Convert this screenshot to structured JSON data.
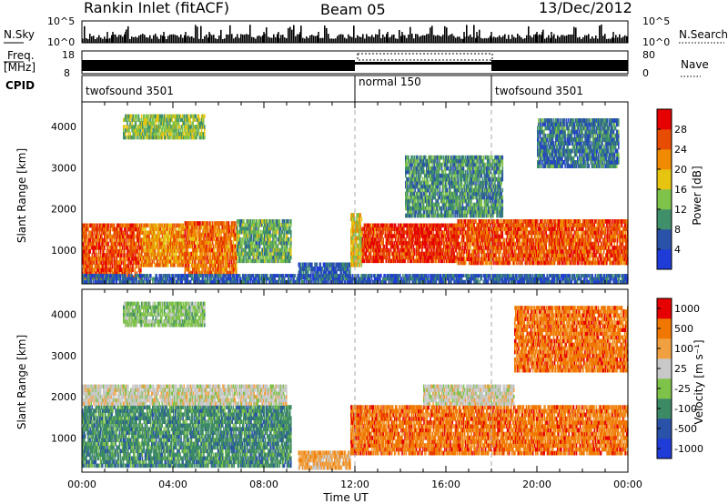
{
  "header": {
    "title": "Rankin Inlet (fitACF)",
    "beam": "Beam 05",
    "date": "13/Dec/2012"
  },
  "top_panels": {
    "nsky_label": "N.Sky",
    "nsky_ticks": [
      "10^5",
      "10^0"
    ],
    "nsearch_label": "N.Search",
    "nsearch_ticks": [
      "10^5",
      "10^0"
    ],
    "freq_label_1": "Freq.",
    "freq_label_2": "[MHz]",
    "freq_ticks": [
      "18",
      "8"
    ],
    "nave_label": "Nave",
    "nave_ticks": [
      "80",
      "0"
    ],
    "cpid_label": "CPID",
    "cpid_segments": [
      {
        "name": "twofsound 3501",
        "start_h": 0,
        "end_h": 12
      },
      {
        "name": "normal 150",
        "start_h": 12,
        "end_h": 18
      },
      {
        "name": "twofsound 3501",
        "start_h": 18,
        "end_h": 24
      }
    ]
  },
  "x_axis": {
    "label": "Time UT",
    "ticks": [
      "00:00",
      "04:00",
      "08:00",
      "12:00",
      "16:00",
      "20:00",
      "00:00"
    ]
  },
  "chart_data": [
    {
      "type": "heatmap",
      "parameter": "power",
      "ylabel": "Slant Range [km]",
      "xlim_hours": [
        0,
        24
      ],
      "ylim_km": [
        180,
        4600
      ],
      "y_ticks": [
        1000,
        2000,
        3000,
        4000
      ],
      "colorbar_label": "Power [dB]",
      "colorbar_ticks": [
        "4",
        "8",
        "12",
        "16",
        "20",
        "24",
        "28"
      ],
      "colorbar_range": [
        0,
        32
      ],
      "colors": [
        "#1f3bd8",
        "#2a52a8",
        "#3f8f6a",
        "#7fc24a",
        "#e6c410",
        "#f08a00",
        "#e74c00",
        "#e60000"
      ],
      "regions": [
        {
          "t0": 0,
          "t1": 2.6,
          "r0": 300,
          "r1": 1650,
          "level": 26
        },
        {
          "t0": 2.6,
          "t1": 4.5,
          "r0": 600,
          "r1": 1650,
          "level": 22
        },
        {
          "t0": 4.5,
          "t1": 6.8,
          "r0": 400,
          "r1": 1700,
          "level": 24
        },
        {
          "t0": 6.8,
          "t1": 9.2,
          "r0": 700,
          "r1": 1750,
          "level": 12
        },
        {
          "t0": 9.5,
          "t1": 11.8,
          "r0": 300,
          "r1": 700,
          "level": 6
        },
        {
          "t0": 11.8,
          "t1": 12.3,
          "r0": 600,
          "r1": 1900,
          "level": 18
        },
        {
          "t0": 12.3,
          "t1": 16.5,
          "r0": 700,
          "r1": 1650,
          "level": 28
        },
        {
          "t0": 16.5,
          "t1": 24,
          "r0": 650,
          "r1": 1750,
          "level": 26
        },
        {
          "t0": 1.8,
          "t1": 5.4,
          "r0": 3700,
          "r1": 4300,
          "level": 14
        },
        {
          "t0": 14.2,
          "t1": 18.5,
          "r0": 1800,
          "r1": 3300,
          "level": 10
        },
        {
          "t0": 20,
          "t1": 23.6,
          "r0": 3000,
          "r1": 4200,
          "level": 8
        },
        {
          "t0": 0,
          "t1": 24,
          "r0": 200,
          "r1": 420,
          "level": 6
        }
      ]
    },
    {
      "type": "heatmap",
      "parameter": "velocity",
      "ylabel": "Slant Range [km]",
      "xlim_hours": [
        0,
        24
      ],
      "ylim_km": [
        180,
        4600
      ],
      "y_ticks": [
        1000,
        2000,
        3000,
        4000
      ],
      "colorbar_label": "Velocity [m s⁻¹]",
      "colorbar_ticks": [
        "1000",
        "500",
        "100",
        "25",
        "-25",
        "-100",
        "-500",
        "-1000"
      ],
      "colors": [
        "#1f3bd8",
        "#2a52a8",
        "#3d8a66",
        "#7fc24a",
        "#c8c8c8",
        "#f0a040",
        "#f07800",
        "#e60000"
      ],
      "regions": [
        {
          "t0": 0,
          "t1": 9.2,
          "r0": 300,
          "r1": 1800,
          "level": 2
        },
        {
          "t0": 0,
          "t1": 9,
          "r0": 1800,
          "r1": 2300,
          "level": 4
        },
        {
          "t0": 9.5,
          "t1": 11.8,
          "r0": 250,
          "r1": 700,
          "level": 5
        },
        {
          "t0": 11.8,
          "t1": 24,
          "r0": 600,
          "r1": 1800,
          "level": 6
        },
        {
          "t0": 15,
          "t1": 19,
          "r0": 1800,
          "r1": 2300,
          "level": 4
        },
        {
          "t0": 19,
          "t1": 24,
          "r0": 2600,
          "r1": 4200,
          "level": 6
        },
        {
          "t0": 1.8,
          "t1": 5.4,
          "r0": 3700,
          "r1": 4300,
          "level": 3
        }
      ]
    }
  ]
}
